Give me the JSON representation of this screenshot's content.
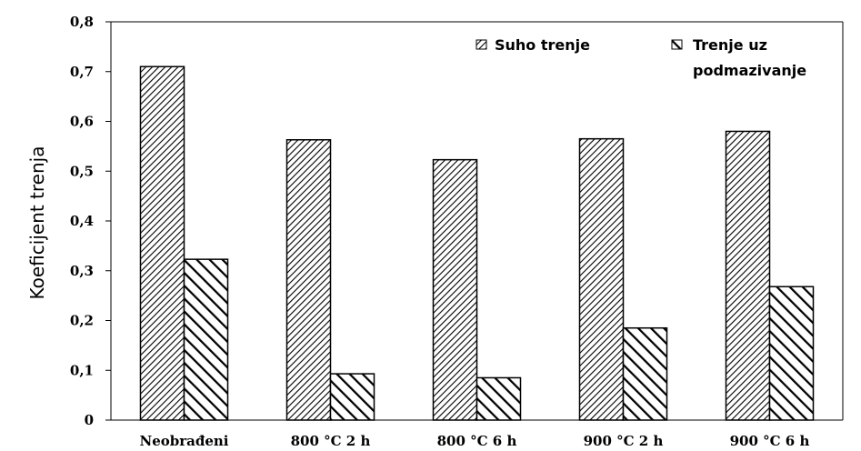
{
  "chart_data": {
    "type": "bar",
    "ylabel": "Koeficijent trenja",
    "xlabel": "",
    "title": "",
    "ylim": [
      0,
      0.8
    ],
    "yticks": [
      "0",
      "0,1",
      "0,2",
      "0,3",
      "0,4",
      "0,5",
      "0,6",
      "0,7",
      "0,8"
    ],
    "categories": [
      "Neobrađeni",
      "800 °C 2 h",
      "800 °C 6 h",
      "900 °C 2 h",
      "900 °C 6 h"
    ],
    "series": [
      {
        "name": "Suho trenje",
        "values": [
          0.71,
          0.563,
          0.523,
          0.565,
          0.58
        ]
      },
      {
        "name": "Trenje uz podmazivanje",
        "values": [
          0.323,
          0.093,
          0.085,
          0.185,
          0.268
        ]
      }
    ],
    "legend": {
      "placement": "top-right",
      "labels": [
        "Suho trenje",
        "Trenje uz",
        "podmazivanje"
      ]
    },
    "grid": false
  }
}
